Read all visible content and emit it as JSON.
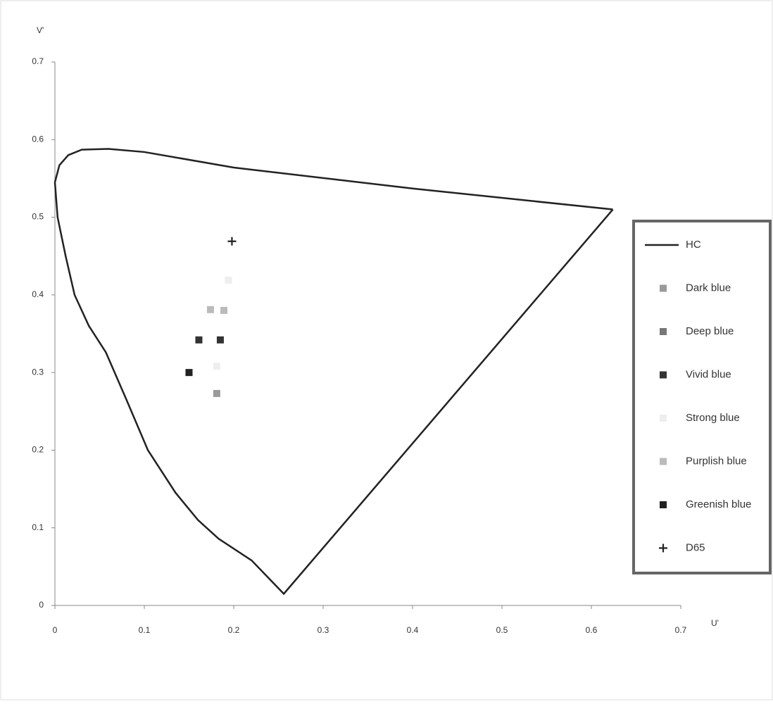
{
  "chart_data": {
    "type": "scatter",
    "x_label": "U'",
    "y_label": "V'",
    "xlim": [
      0,
      0.7
    ],
    "xticks": [
      0,
      0.1,
      0.2,
      0.3,
      0.4,
      0.5,
      0.6,
      0.7
    ],
    "ylim": [
      0,
      0.7
    ],
    "yticks": [
      0,
      0.1,
      0.2,
      0.3,
      0.4,
      0.5,
      0.6,
      0.7
    ],
    "legend": "right",
    "series": [
      {
        "name": "HC",
        "color": "#222222",
        "marker": "line",
        "x": [
          0.624,
          0.4,
          0.2,
          0.1,
          0.06,
          0.03,
          0.015,
          0.005,
          0.0,
          0.003,
          0.012,
          0.022,
          0.038,
          0.057,
          0.08,
          0.104,
          0.135,
          0.16,
          0.183,
          0.22,
          0.256,
          0.624
        ],
        "values": [
          0.51,
          0.537,
          0.564,
          0.584,
          0.588,
          0.587,
          0.58,
          0.567,
          0.545,
          0.5,
          0.45,
          0.4,
          0.36,
          0.326,
          0.265,
          0.2,
          0.145,
          0.11,
          0.086,
          0.058,
          0.015,
          0.51
        ]
      },
      {
        "name": "Dark blue",
        "color": "#9a9a9a",
        "marker": "square",
        "x": [
          0.181
        ],
        "values": [
          0.273
        ]
      },
      {
        "name": "Deep blue",
        "color": "#777777",
        "marker": "square",
        "x": [],
        "values": []
      },
      {
        "name": "Vivid blue",
        "color": "#333333",
        "marker": "square",
        "x": [
          0.161,
          0.185
        ],
        "values": [
          0.342,
          0.342
        ]
      },
      {
        "name": "Strong blue",
        "color": "#eeeeee",
        "marker": "square",
        "x": [
          0.194,
          0.181
        ],
        "values": [
          0.419,
          0.308
        ]
      },
      {
        "name": "Purplish blue",
        "color": "#bbbbbb",
        "marker": "square",
        "x": [
          0.174,
          0.189
        ],
        "values": [
          0.381,
          0.38
        ]
      },
      {
        "name": "Greenish blue",
        "color": "#222222",
        "marker": "square",
        "x": [
          0.15
        ],
        "values": [
          0.3
        ]
      },
      {
        "name": "D65",
        "color": "#222222",
        "marker": "plus",
        "x": [
          0.198
        ],
        "values": [
          0.469
        ]
      }
    ]
  }
}
